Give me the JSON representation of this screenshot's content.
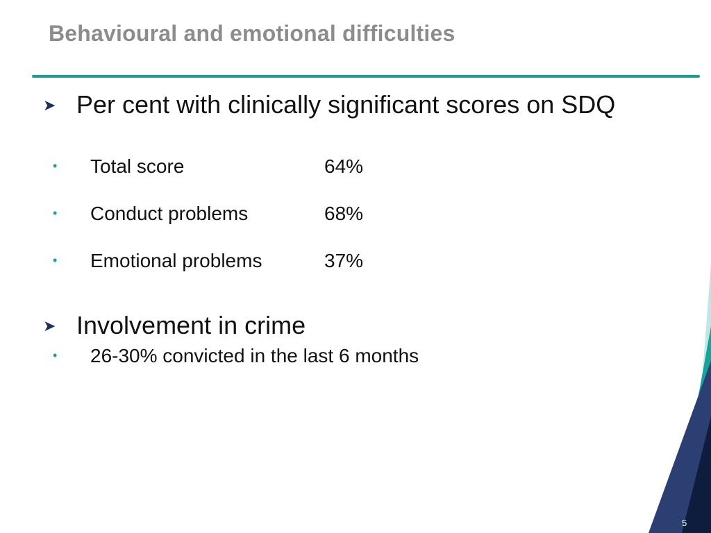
{
  "slide": {
    "title": "Behavioural and emotional difficulties",
    "page_number": "5",
    "accent_color": "#1a9e96",
    "dark_color": "#1f2f5c",
    "sections": [
      {
        "bullet_icon": "arrow-bullet",
        "heading": "Per cent with clinically significant scores on SDQ",
        "items": [
          {
            "label": "Total score",
            "value": "64%"
          },
          {
            "label": "Conduct problems",
            "value": "68%"
          },
          {
            "label": "Emotional problems",
            "value": "37%"
          }
        ]
      },
      {
        "bullet_icon": "arrow-bullet",
        "heading": "Involvement in crime",
        "items": [
          {
            "label": "26-30% convicted in the last 6 months"
          }
        ]
      }
    ]
  }
}
